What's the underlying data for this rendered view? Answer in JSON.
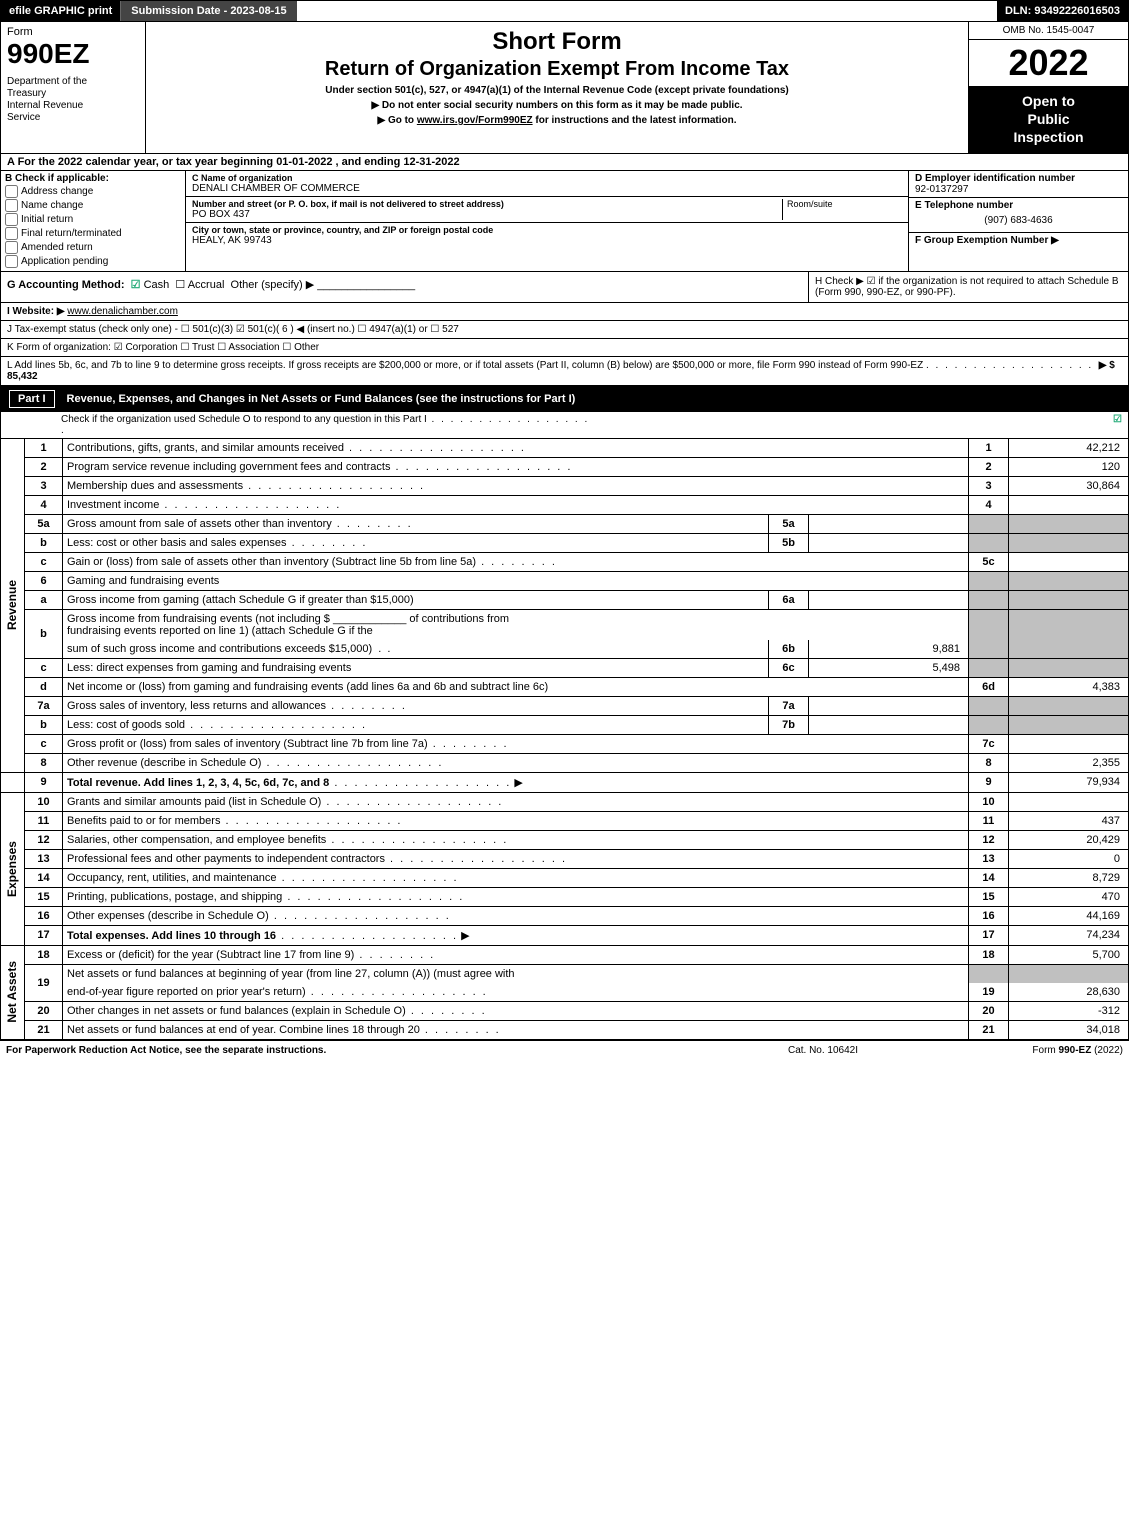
{
  "topbar": {
    "efile": "efile GRAPHIC print",
    "submission": "Submission Date - 2023-08-15",
    "dln": "DLN: 93492226016503"
  },
  "header": {
    "form_word": "Form",
    "form_number": "990EZ",
    "dept": "Department of the Treasury\nInternal Revenue Service",
    "title1": "Short Form",
    "title2": "Return of Organization Exempt From Income Tax",
    "sub1": "Under section 501(c), 527, or 4947(a)(1) of the Internal Revenue Code (except private foundations)",
    "sub2": "▶ Do not enter social security numbers on this form as it may be made public.",
    "sub3": "▶ Go to www.irs.gov/Form990EZ for instructions and the latest information.",
    "omb": "OMB No. 1545-0047",
    "year": "2022",
    "open": "Open to Public Inspection"
  },
  "sectionA": "A  For the 2022 calendar year, or tax year beginning 01-01-2022 , and ending 12-31-2022",
  "colB": {
    "header": "B  Check if applicable:",
    "opts": [
      "Address change",
      "Name change",
      "Initial return",
      "Final return/terminated",
      "Amended return",
      "Application pending"
    ]
  },
  "colC": {
    "name_lbl": "C Name of organization",
    "name": "DENALI CHAMBER OF COMMERCE",
    "street_lbl": "Number and street (or P. O. box, if mail is not delivered to street address)",
    "room_lbl": "Room/suite",
    "street": "PO BOX 437",
    "city_lbl": "City or town, state or province, country, and ZIP or foreign postal code",
    "city": "HEALY, AK  99743"
  },
  "colDE": {
    "d_lbl": "D Employer identification number",
    "ein": "92-0137297",
    "e_lbl": "E Telephone number",
    "phone": "(907) 683-4636",
    "f_lbl": "F Group Exemption Number  ▶"
  },
  "rowG": {
    "label": "G Accounting Method:",
    "cash": "Cash",
    "accrual": "Accrual",
    "other": "Other (specify) ▶"
  },
  "rowH": "H  Check ▶ ☑ if the organization is not required to attach Schedule B (Form 990, 990-EZ, or 990-PF).",
  "rowI": {
    "label": "I Website: ▶",
    "value": "www.denalichamber.com"
  },
  "rowJ": "J Tax-exempt status (check only one) - ☐ 501(c)(3)  ☑ 501(c)( 6 ) ◀ (insert no.)  ☐ 4947(a)(1) or  ☐ 527",
  "rowK": "K Form of organization:   ☑ Corporation   ☐ Trust   ☐ Association   ☐ Other",
  "rowL": {
    "text": "L Add lines 5b, 6c, and 7b to line 9 to determine gross receipts. If gross receipts are $200,000 or more, or if total assets (Part II, column (B) below) are $500,000 or more, file Form 990 instead of Form 990-EZ",
    "amount": "▶ $ 85,432"
  },
  "part1": {
    "label": "Part I",
    "title": "Revenue, Expenses, and Changes in Net Assets or Fund Balances (see the instructions for Part I)",
    "sub": "Check if the organization used Schedule O to respond to any question in this Part I"
  },
  "sidebar": {
    "revenue": "Revenue",
    "expenses": "Expenses",
    "netassets": "Net Assets"
  },
  "lines": {
    "l1": {
      "n": "1",
      "d": "Contributions, gifts, grants, and similar amounts received",
      "rn": "1",
      "rv": "42,212"
    },
    "l2": {
      "n": "2",
      "d": "Program service revenue including government fees and contracts",
      "rn": "2",
      "rv": "120"
    },
    "l3": {
      "n": "3",
      "d": "Membership dues and assessments",
      "rn": "3",
      "rv": "30,864"
    },
    "l4": {
      "n": "4",
      "d": "Investment income",
      "rn": "4",
      "rv": ""
    },
    "l5a": {
      "n": "5a",
      "d": "Gross amount from sale of assets other than inventory",
      "sn": "5a",
      "sv": ""
    },
    "l5b": {
      "n": "b",
      "d": "Less: cost or other basis and sales expenses",
      "sn": "5b",
      "sv": ""
    },
    "l5c": {
      "n": "c",
      "d": "Gain or (loss) from sale of assets other than inventory (Subtract line 5b from line 5a)",
      "rn": "5c",
      "rv": ""
    },
    "l6": {
      "n": "6",
      "d": "Gaming and fundraising events"
    },
    "l6a": {
      "n": "a",
      "d": "Gross income from gaming (attach Schedule G if greater than $15,000)",
      "sn": "6a",
      "sv": ""
    },
    "l6b": {
      "n": "b",
      "d1": "Gross income from fundraising events (not including $",
      "d2": "of contributions from fundraising events reported on line 1) (attach Schedule G if the sum of such gross income and contributions exceeds $15,000)",
      "sn": "6b",
      "sv": "9,881"
    },
    "l6c": {
      "n": "c",
      "d": "Less: direct expenses from gaming and fundraising events",
      "sn": "6c",
      "sv": "5,498"
    },
    "l6d": {
      "n": "d",
      "d": "Net income or (loss) from gaming and fundraising events (add lines 6a and 6b and subtract line 6c)",
      "rn": "6d",
      "rv": "4,383"
    },
    "l7a": {
      "n": "7a",
      "d": "Gross sales of inventory, less returns and allowances",
      "sn": "7a",
      "sv": ""
    },
    "l7b": {
      "n": "b",
      "d": "Less: cost of goods sold",
      "sn": "7b",
      "sv": ""
    },
    "l7c": {
      "n": "c",
      "d": "Gross profit or (loss) from sales of inventory (Subtract line 7b from line 7a)",
      "rn": "7c",
      "rv": ""
    },
    "l8": {
      "n": "8",
      "d": "Other revenue (describe in Schedule O)",
      "rn": "8",
      "rv": "2,355"
    },
    "l9": {
      "n": "9",
      "d": "Total revenue. Add lines 1, 2, 3, 4, 5c, 6d, 7c, and 8",
      "rn": "9",
      "rv": "79,934"
    },
    "l10": {
      "n": "10",
      "d": "Grants and similar amounts paid (list in Schedule O)",
      "rn": "10",
      "rv": ""
    },
    "l11": {
      "n": "11",
      "d": "Benefits paid to or for members",
      "rn": "11",
      "rv": "437"
    },
    "l12": {
      "n": "12",
      "d": "Salaries, other compensation, and employee benefits",
      "rn": "12",
      "rv": "20,429"
    },
    "l13": {
      "n": "13",
      "d": "Professional fees and other payments to independent contractors",
      "rn": "13",
      "rv": "0"
    },
    "l14": {
      "n": "14",
      "d": "Occupancy, rent, utilities, and maintenance",
      "rn": "14",
      "rv": "8,729"
    },
    "l15": {
      "n": "15",
      "d": "Printing, publications, postage, and shipping",
      "rn": "15",
      "rv": "470"
    },
    "l16": {
      "n": "16",
      "d": "Other expenses (describe in Schedule O)",
      "rn": "16",
      "rv": "44,169"
    },
    "l17": {
      "n": "17",
      "d": "Total expenses. Add lines 10 through 16",
      "rn": "17",
      "rv": "74,234"
    },
    "l18": {
      "n": "18",
      "d": "Excess or (deficit) for the year (Subtract line 17 from line 9)",
      "rn": "18",
      "rv": "5,700"
    },
    "l19": {
      "n": "19",
      "d": "Net assets or fund balances at beginning of year (from line 27, column (A)) (must agree with end-of-year figure reported on prior year's return)",
      "rn": "19",
      "rv": "28,630"
    },
    "l20": {
      "n": "20",
      "d": "Other changes in net assets or fund balances (explain in Schedule O)",
      "rn": "20",
      "rv": "-312"
    },
    "l21": {
      "n": "21",
      "d": "Net assets or fund balances at end of year. Combine lines 18 through 20",
      "rn": "21",
      "rv": "34,018"
    }
  },
  "footer": {
    "left": "For Paperwork Reduction Act Notice, see the separate instructions.",
    "center": "Cat. No. 10642I",
    "right": "Form 990-EZ (2022)"
  },
  "colors": {
    "black": "#000000",
    "grey": "#c0c0c0",
    "green_check": "#22aa77"
  }
}
